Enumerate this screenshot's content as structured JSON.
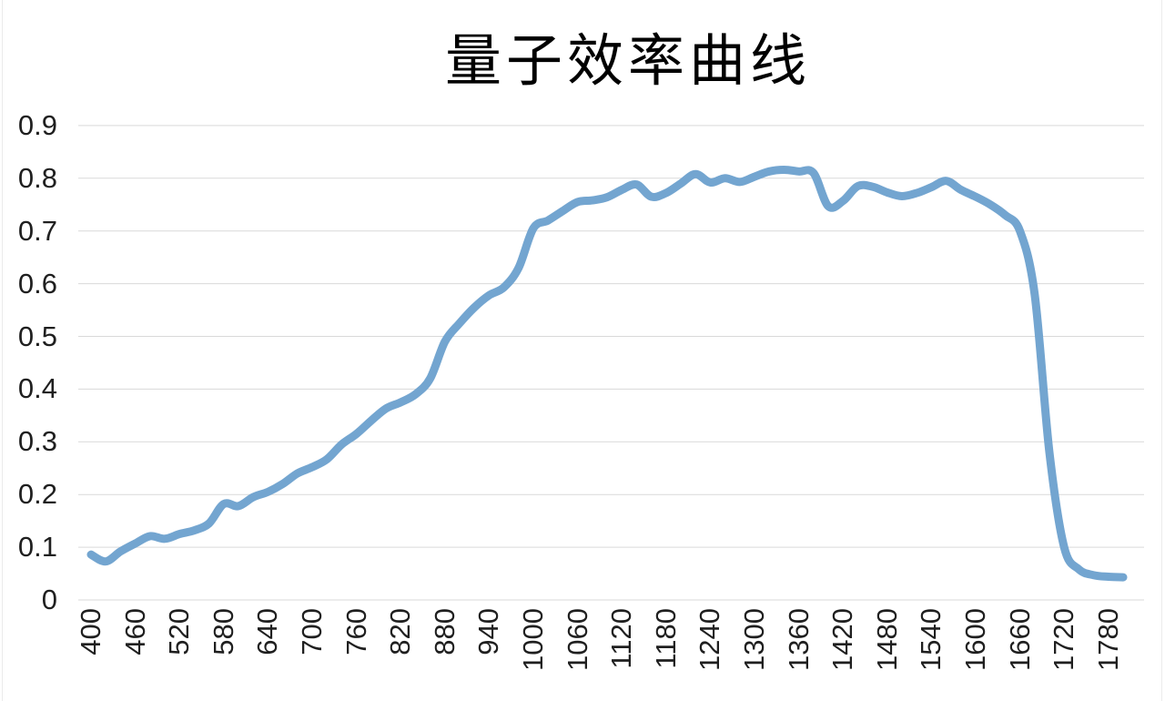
{
  "page": {
    "title": "量子效率曲线"
  },
  "colors": {
    "line": "#73a5d0",
    "grid": "#d9d9d9",
    "tick_label": "#1f1f1f",
    "title": "#000000",
    "background": "#ffffff"
  },
  "chart_data": {
    "type": "line",
    "title": "量子效率曲线",
    "xlabel": "",
    "ylabel": "",
    "grid": "horizontal",
    "legend": "none",
    "smooth": true,
    "line_color": "#73a5d0",
    "xlim": [
      400,
      1800
    ],
    "ylim": [
      0,
      0.9
    ],
    "xtick_labels": [
      "400",
      "460",
      "520",
      "580",
      "640",
      "700",
      "760",
      "820",
      "880",
      "940",
      "1000",
      "1060",
      "1120",
      "1180",
      "1240",
      "1300",
      "1360",
      "1420",
      "1480",
      "1540",
      "1600",
      "1660",
      "1720",
      "1780"
    ],
    "ytick_labels": [
      "0",
      "0.1",
      "0.2",
      "0.3",
      "0.4",
      "0.5",
      "0.6",
      "0.7",
      "0.8",
      "0.9"
    ],
    "x": [
      400,
      420,
      440,
      460,
      480,
      500,
      520,
      540,
      560,
      580,
      600,
      620,
      640,
      660,
      680,
      700,
      720,
      740,
      760,
      780,
      800,
      820,
      840,
      860,
      880,
      900,
      920,
      940,
      960,
      980,
      1000,
      1020,
      1040,
      1060,
      1080,
      1100,
      1120,
      1140,
      1160,
      1180,
      1200,
      1220,
      1240,
      1260,
      1280,
      1300,
      1320,
      1340,
      1360,
      1380,
      1400,
      1420,
      1440,
      1460,
      1480,
      1500,
      1520,
      1540,
      1560,
      1580,
      1600,
      1620,
      1640,
      1660,
      1680,
      1700,
      1720,
      1740,
      1760,
      1780,
      1800
    ],
    "y": [
      0.086,
      0.073,
      0.092,
      0.107,
      0.121,
      0.116,
      0.125,
      0.132,
      0.145,
      0.182,
      0.178,
      0.195,
      0.205,
      0.22,
      0.24,
      0.252,
      0.267,
      0.295,
      0.315,
      0.34,
      0.363,
      0.375,
      0.39,
      0.42,
      0.49,
      0.525,
      0.555,
      0.578,
      0.593,
      0.63,
      0.705,
      0.72,
      0.738,
      0.755,
      0.758,
      0.764,
      0.778,
      0.788,
      0.765,
      0.772,
      0.79,
      0.808,
      0.792,
      0.8,
      0.793,
      0.803,
      0.813,
      0.816,
      0.813,
      0.81,
      0.747,
      0.757,
      0.785,
      0.784,
      0.773,
      0.766,
      0.772,
      0.783,
      0.795,
      0.778,
      0.765,
      0.75,
      0.73,
      0.7,
      0.58,
      0.28,
      0.1,
      0.058,
      0.047,
      0.044,
      0.043
    ]
  }
}
